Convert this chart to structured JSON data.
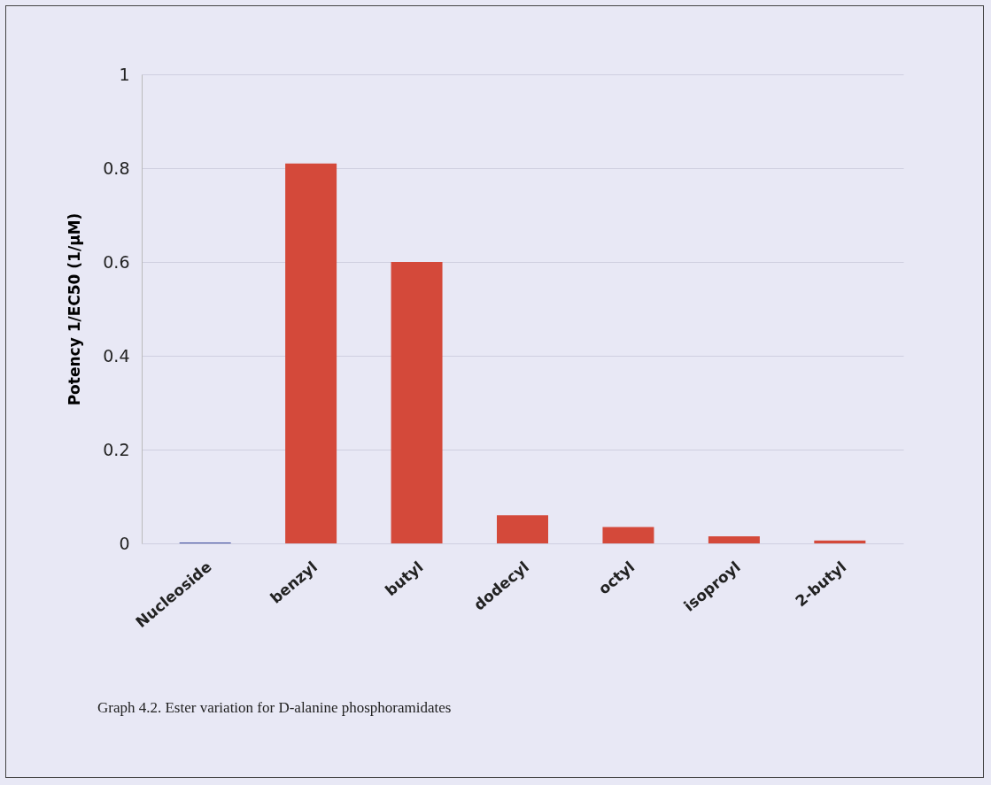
{
  "chart_data": {
    "type": "bar",
    "ylabel": "Potency 1/EC50 (1/µM)",
    "categories": [
      "Nucleoside",
      "benzyl",
      "butyl",
      "dodecyl",
      "octyl",
      "isoproyl",
      "2-butyl"
    ],
    "values": [
      0.002,
      0.81,
      0.6,
      0.06,
      0.035,
      0.015,
      0.006
    ],
    "colors": [
      "#3f4ea0",
      "#d4493a",
      "#d4493a",
      "#d4493a",
      "#d4493a",
      "#d4493a",
      "#d4493a"
    ],
    "ylim": [
      0,
      1
    ],
    "yticks": [
      0,
      0.2,
      0.4,
      0.6,
      0.8,
      1
    ],
    "grid": "y",
    "annotations": [
      "Graph 4.2. Ester variation for D-alanine phosphoramidates"
    ]
  }
}
